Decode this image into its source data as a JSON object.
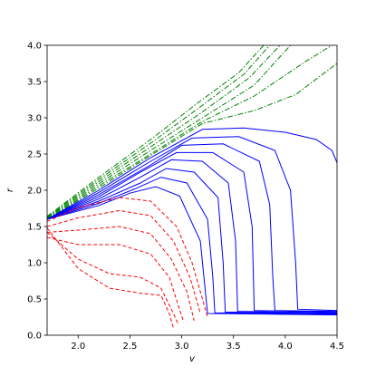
{
  "chart_data": {
    "type": "line",
    "title": "",
    "xlabel": "v",
    "ylabel": "r",
    "xlim": [
      1.7,
      4.5
    ],
    "ylim": [
      0.0,
      4.0
    ],
    "grid": false,
    "legend": false,
    "x_ticks": [
      2.0,
      2.5,
      3.0,
      3.5,
      4.0,
      4.5
    ],
    "x_tick_labels": [
      "2.0",
      "2.5",
      "3.0",
      "3.5",
      "4.0",
      "4.5"
    ],
    "y_ticks": [
      0.0,
      0.5,
      1.0,
      1.5,
      2.0,
      2.5,
      3.0,
      3.5,
      4.0
    ],
    "y_tick_labels": [
      "0.0",
      "0.5",
      "1.0",
      "1.5",
      "2.0",
      "2.5",
      "3.0",
      "3.5",
      "4.0"
    ],
    "colors": {
      "green_family": "#008000",
      "blue_family": "#0000ff",
      "red_family": "#ff0000"
    },
    "series": [
      {
        "group": "green_family",
        "style": "dashdot",
        "points": [
          [
            1.7,
            1.64
          ],
          [
            2.2,
            2.18
          ],
          [
            2.7,
            2.7
          ],
          [
            3.15,
            3.2
          ],
          [
            3.55,
            3.62
          ],
          [
            3.79,
            4.0
          ]
        ]
      },
      {
        "group": "green_family",
        "style": "dashdot",
        "points": [
          [
            1.7,
            1.63
          ],
          [
            2.2,
            2.15
          ],
          [
            2.7,
            2.65
          ],
          [
            3.15,
            3.12
          ],
          [
            3.6,
            3.6
          ],
          [
            3.85,
            4.0
          ]
        ]
      },
      {
        "group": "green_family",
        "style": "dashdot",
        "points": [
          [
            1.7,
            1.62
          ],
          [
            2.2,
            2.12
          ],
          [
            2.7,
            2.6
          ],
          [
            3.2,
            3.08
          ],
          [
            3.65,
            3.55
          ],
          [
            3.95,
            4.0
          ]
        ]
      },
      {
        "group": "green_family",
        "style": "dashdot",
        "points": [
          [
            1.7,
            1.61
          ],
          [
            2.2,
            2.09
          ],
          [
            2.7,
            2.55
          ],
          [
            3.2,
            3.0
          ],
          [
            3.7,
            3.45
          ],
          [
            4.05,
            4.0
          ]
        ]
      },
      {
        "group": "green_family",
        "style": "dashdot",
        "points": [
          [
            1.7,
            1.6
          ],
          [
            2.2,
            2.06
          ],
          [
            2.7,
            2.5
          ],
          [
            3.2,
            2.95
          ],
          [
            3.7,
            3.3
          ],
          [
            4.2,
            3.78
          ],
          [
            4.45,
            4.0
          ]
        ]
      },
      {
        "group": "green_family",
        "style": "dashdot",
        "points": [
          [
            1.7,
            1.6
          ],
          [
            2.2,
            2.03
          ],
          [
            2.7,
            2.48
          ],
          [
            3.2,
            2.92
          ],
          [
            3.7,
            3.1
          ],
          [
            4.1,
            3.32
          ],
          [
            4.5,
            3.75
          ]
        ]
      },
      {
        "group": "blue_family",
        "style": "solid",
        "points": [
          [
            1.7,
            1.6
          ],
          [
            2.2,
            2.0
          ],
          [
            2.7,
            2.45
          ],
          [
            3.2,
            2.84
          ],
          [
            3.6,
            2.86
          ],
          [
            4.0,
            2.8
          ],
          [
            4.3,
            2.7
          ],
          [
            4.45,
            2.55
          ],
          [
            4.5,
            2.38
          ]
        ]
      },
      {
        "group": "blue_family",
        "style": "solid",
        "points": [
          [
            1.7,
            1.6
          ],
          [
            2.2,
            1.97
          ],
          [
            2.7,
            2.4
          ],
          [
            3.1,
            2.72
          ],
          [
            3.55,
            2.74
          ],
          [
            3.9,
            2.55
          ],
          [
            4.05,
            2.0
          ],
          [
            4.1,
            1.0
          ],
          [
            4.12,
            0.36
          ],
          [
            4.5,
            0.34
          ]
        ]
      },
      {
        "group": "blue_family",
        "style": "solid",
        "points": [
          [
            1.7,
            1.6
          ],
          [
            2.2,
            1.94
          ],
          [
            2.7,
            2.35
          ],
          [
            3.0,
            2.62
          ],
          [
            3.4,
            2.64
          ],
          [
            3.75,
            2.4
          ],
          [
            3.85,
            1.8
          ],
          [
            3.88,
            0.8
          ],
          [
            3.9,
            0.34
          ],
          [
            4.5,
            0.33
          ]
        ]
      },
      {
        "group": "blue_family",
        "style": "solid",
        "points": [
          [
            1.7,
            1.6
          ],
          [
            2.2,
            1.91
          ],
          [
            2.6,
            2.25
          ],
          [
            2.95,
            2.52
          ],
          [
            3.3,
            2.52
          ],
          [
            3.6,
            2.25
          ],
          [
            3.68,
            1.5
          ],
          [
            3.7,
            0.34
          ],
          [
            4.5,
            0.32
          ]
        ]
      },
      {
        "group": "blue_family",
        "style": "solid",
        "points": [
          [
            1.7,
            1.6
          ],
          [
            2.2,
            1.88
          ],
          [
            2.6,
            2.18
          ],
          [
            2.9,
            2.42
          ],
          [
            3.2,
            2.4
          ],
          [
            3.45,
            2.1
          ],
          [
            3.52,
            1.3
          ],
          [
            3.54,
            0.33
          ],
          [
            4.5,
            0.31
          ]
        ]
      },
      {
        "group": "blue_family",
        "style": "solid",
        "points": [
          [
            1.7,
            1.6
          ],
          [
            2.2,
            1.85
          ],
          [
            2.6,
            2.1
          ],
          [
            2.85,
            2.3
          ],
          [
            3.12,
            2.25
          ],
          [
            3.35,
            1.9
          ],
          [
            3.4,
            1.0
          ],
          [
            3.42,
            0.32
          ],
          [
            4.5,
            0.3
          ]
        ]
      },
      {
        "group": "blue_family",
        "style": "solid",
        "points": [
          [
            1.7,
            1.6
          ],
          [
            2.2,
            1.82
          ],
          [
            2.55,
            2.02
          ],
          [
            2.8,
            2.18
          ],
          [
            3.05,
            2.1
          ],
          [
            3.25,
            1.6
          ],
          [
            3.3,
            0.8
          ],
          [
            3.32,
            0.31
          ],
          [
            4.5,
            0.29
          ]
        ]
      },
      {
        "group": "blue_family",
        "style": "solid",
        "points": [
          [
            1.7,
            1.6
          ],
          [
            2.2,
            1.79
          ],
          [
            2.5,
            1.96
          ],
          [
            2.75,
            2.05
          ],
          [
            2.98,
            1.92
          ],
          [
            3.18,
            1.3
          ],
          [
            3.25,
            0.3
          ],
          [
            4.5,
            0.28
          ]
        ]
      },
      {
        "group": "red_family",
        "style": "dashed",
        "points": [
          [
            1.7,
            1.57
          ],
          [
            2.0,
            1.76
          ],
          [
            2.4,
            1.9
          ],
          [
            2.7,
            1.85
          ],
          [
            2.95,
            1.5
          ],
          [
            3.1,
            1.0
          ],
          [
            3.2,
            0.5
          ],
          [
            3.25,
            0.25
          ]
        ]
      },
      {
        "group": "red_family",
        "style": "dashed",
        "points": [
          [
            1.7,
            1.5
          ],
          [
            2.0,
            1.62
          ],
          [
            2.4,
            1.72
          ],
          [
            2.7,
            1.65
          ],
          [
            2.92,
            1.3
          ],
          [
            3.08,
            0.8
          ],
          [
            3.18,
            0.3
          ]
        ]
      },
      {
        "group": "red_family",
        "style": "dashed",
        "points": [
          [
            1.7,
            1.42
          ],
          [
            2.0,
            1.45
          ],
          [
            2.4,
            1.5
          ],
          [
            2.7,
            1.4
          ],
          [
            2.9,
            1.05
          ],
          [
            3.05,
            0.6
          ],
          [
            3.12,
            0.2
          ]
        ]
      },
      {
        "group": "red_family",
        "style": "dashed",
        "points": [
          [
            1.7,
            1.35
          ],
          [
            2.0,
            1.25
          ],
          [
            2.4,
            1.25
          ],
          [
            2.7,
            1.12
          ],
          [
            2.88,
            0.8
          ],
          [
            2.98,
            0.35
          ],
          [
            3.02,
            0.18
          ]
        ]
      },
      {
        "group": "red_family",
        "style": "dashed",
        "points": [
          [
            1.7,
            1.42
          ],
          [
            2.0,
            1.05
          ],
          [
            2.3,
            0.85
          ],
          [
            2.6,
            0.8
          ],
          [
            2.8,
            0.65
          ],
          [
            2.92,
            0.3
          ],
          [
            2.97,
            0.14
          ]
        ]
      },
      {
        "group": "red_family",
        "style": "dashed",
        "points": [
          [
            1.7,
            1.48
          ],
          [
            2.0,
            0.92
          ],
          [
            2.3,
            0.65
          ],
          [
            2.6,
            0.58
          ],
          [
            2.8,
            0.55
          ],
          [
            2.88,
            0.3
          ],
          [
            2.92,
            0.1
          ]
        ]
      }
    ]
  }
}
